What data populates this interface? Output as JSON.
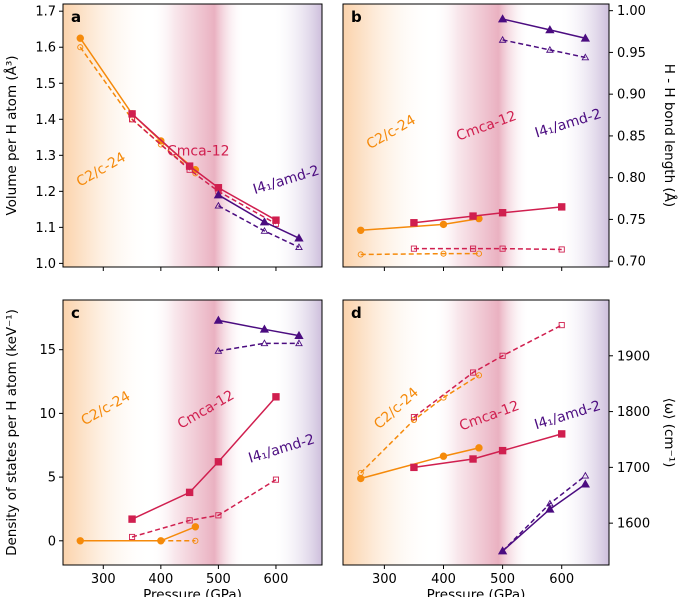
{
  "colors": {
    "c2c24": "#f58a0b",
    "cmca12": "#d01f4f",
    "i41amd2": "#4b0c80",
    "bg_orange": "#fbd3ac",
    "bg_pink": "#eab1c1",
    "bg_purple": "#cdbedc"
  },
  "chart_data": [
    {
      "panel": "a",
      "type": "line",
      "title": "",
      "xlabel": "",
      "ylabel": "Volume per H atom (Å³)",
      "yaxis_side": "left",
      "xlim": [
        230,
        680
      ],
      "ylim": [
        0.99,
        1.72
      ],
      "xticks": [
        300,
        400,
        500,
        600
      ],
      "show_xtick_labels": false,
      "yticks": [
        1.0,
        1.1,
        1.2,
        1.3,
        1.4,
        1.5,
        1.6,
        1.7
      ],
      "ytick_labels": [
        "1.0",
        "1.1",
        "1.2",
        "1.3",
        "1.4",
        "1.5",
        "1.6",
        "1.7"
      ],
      "annotations": [
        {
          "text": "C2/c-24",
          "x": 300,
          "y": 1.25,
          "rotation": -30,
          "color_key": "c2c24"
        },
        {
          "text": "Cmca-12",
          "x": 465,
          "y": 1.3,
          "rotation": 0,
          "color_key": "cmca12"
        },
        {
          "text": "I4₁/amd-2",
          "x": 620,
          "y": 1.22,
          "rotation": -17,
          "color_key": "i41amd2"
        }
      ],
      "series": [
        {
          "name": "C2/c-24 solid",
          "phase": "c2c24",
          "style": "solid",
          "marker": "circle",
          "filled": true,
          "x": [
            260,
            350,
            400,
            460
          ],
          "y": [
            1.625,
            1.415,
            1.34,
            1.26
          ]
        },
        {
          "name": "C2/c-24 dashed",
          "phase": "c2c24",
          "style": "dashed",
          "marker": "circle",
          "filled": false,
          "x": [
            260,
            350,
            400,
            460
          ],
          "y": [
            1.6,
            1.4,
            1.33,
            1.25
          ]
        },
        {
          "name": "Cmca-12 solid",
          "phase": "cmca12",
          "style": "solid",
          "marker": "square",
          "filled": true,
          "x": [
            350,
            450,
            500,
            600
          ],
          "y": [
            1.415,
            1.27,
            1.21,
            1.12
          ]
        },
        {
          "name": "Cmca-12 dashed",
          "phase": "cmca12",
          "style": "dashed",
          "marker": "square",
          "filled": false,
          "x": [
            350,
            450,
            500,
            600
          ],
          "y": [
            1.4,
            1.26,
            1.2,
            1.11
          ]
        },
        {
          "name": "I4₁/amd-2 solid",
          "phase": "i41amd2",
          "style": "solid",
          "marker": "triangle",
          "filled": true,
          "x": [
            500,
            580,
            640
          ],
          "y": [
            1.19,
            1.115,
            1.07
          ]
        },
        {
          "name": "I4₁/amd-2 dashed",
          "phase": "i41amd2",
          "style": "dashed",
          "marker": "triangle",
          "filled": false,
          "x": [
            500,
            580,
            640
          ],
          "y": [
            1.16,
            1.09,
            1.045
          ]
        }
      ]
    },
    {
      "panel": "b",
      "type": "line",
      "title": "",
      "xlabel": "",
      "ylabel": "H - H bond length (Å)",
      "yaxis_side": "right",
      "xlim": [
        230,
        680
      ],
      "ylim": [
        0.693,
        1.008
      ],
      "xticks": [
        300,
        400,
        500,
        600
      ],
      "show_xtick_labels": false,
      "yticks": [
        0.7,
        0.75,
        0.8,
        0.85,
        0.9,
        0.95,
        1.0
      ],
      "ytick_labels": [
        "0.70",
        "0.75",
        "0.80",
        "0.85",
        "0.90",
        "0.95",
        "1.00"
      ],
      "annotations": [
        {
          "text": "C2/c-24",
          "x": 315,
          "y": 0.85,
          "rotation": -30,
          "color_key": "c2c24"
        },
        {
          "text": "Cmca-12",
          "x": 475,
          "y": 0.857,
          "rotation": -20,
          "color_key": "cmca12"
        },
        {
          "text": "I4₁/amd-2",
          "x": 613,
          "y": 0.86,
          "rotation": -17,
          "color_key": "i41amd2"
        }
      ],
      "series": [
        {
          "name": "C2/c-24 solid",
          "phase": "c2c24",
          "style": "solid",
          "marker": "circle",
          "filled": true,
          "x": [
            260,
            400,
            460
          ],
          "y": [
            0.737,
            0.744,
            0.751
          ]
        },
        {
          "name": "C2/c-24 dashed",
          "phase": "c2c24",
          "style": "dashed",
          "marker": "circle",
          "filled": false,
          "x": [
            260,
            400,
            460
          ],
          "y": [
            0.708,
            0.709,
            0.709
          ]
        },
        {
          "name": "Cmca-12 solid",
          "phase": "cmca12",
          "style": "solid",
          "marker": "square",
          "filled": true,
          "x": [
            350,
            450,
            500,
            600
          ],
          "y": [
            0.746,
            0.754,
            0.758,
            0.765
          ]
        },
        {
          "name": "Cmca-12 dashed",
          "phase": "cmca12",
          "style": "dashed",
          "marker": "square",
          "filled": false,
          "x": [
            350,
            450,
            500,
            600
          ],
          "y": [
            0.715,
            0.715,
            0.715,
            0.714
          ]
        },
        {
          "name": "I4₁/amd-2 solid",
          "phase": "i41amd2",
          "style": "solid",
          "marker": "triangle",
          "filled": true,
          "x": [
            500,
            580,
            640
          ],
          "y": [
            0.99,
            0.977,
            0.967
          ]
        },
        {
          "name": "I4₁/amd-2 dashed",
          "phase": "i41amd2",
          "style": "dashed",
          "marker": "triangle",
          "filled": false,
          "x": [
            500,
            580,
            640
          ],
          "y": [
            0.965,
            0.953,
            0.944
          ]
        }
      ]
    },
    {
      "panel": "c",
      "type": "line",
      "title": "",
      "xlabel": "Pressure (GPa)",
      "ylabel": "Density of states per H atom (keV⁻¹)",
      "yaxis_side": "left",
      "xlim": [
        230,
        680
      ],
      "ylim": [
        -1.9,
        18.9
      ],
      "xticks": [
        300,
        400,
        500,
        600
      ],
      "xtick_labels": [
        "300",
        "400",
        "500",
        "600"
      ],
      "show_xtick_labels": true,
      "yticks": [
        0,
        5,
        10,
        15
      ],
      "ytick_labels": [
        "0",
        "5",
        "10",
        "15"
      ],
      "annotations": [
        {
          "text": "C2/c-24",
          "x": 308,
          "y": 10.1,
          "rotation": -30,
          "color_key": "c2c24"
        },
        {
          "text": "Cmca-12",
          "x": 482,
          "y": 10.0,
          "rotation": -30,
          "color_key": "cmca12"
        },
        {
          "text": "I4₁/amd-2",
          "x": 612,
          "y": 6.9,
          "rotation": -17,
          "color_key": "i41amd2"
        }
      ],
      "series": [
        {
          "name": "C2/c-24 solid",
          "phase": "c2c24",
          "style": "solid",
          "marker": "circle",
          "filled": true,
          "x": [
            260,
            400,
            460
          ],
          "y": [
            0.0,
            0.0,
            1.1
          ]
        },
        {
          "name": "C2/c-24 dashed",
          "phase": "c2c24",
          "style": "dashed",
          "marker": "circle",
          "filled": false,
          "x": [
            260,
            400,
            460
          ],
          "y": [
            0.0,
            0.0,
            0.0
          ]
        },
        {
          "name": "Cmca-12 solid",
          "phase": "cmca12",
          "style": "solid",
          "marker": "square",
          "filled": true,
          "x": [
            350,
            450,
            500,
            600
          ],
          "y": [
            1.7,
            3.8,
            6.2,
            11.3
          ]
        },
        {
          "name": "Cmca-12 dashed",
          "phase": "cmca12",
          "style": "dashed",
          "marker": "square",
          "filled": false,
          "x": [
            350,
            450,
            500,
            600
          ],
          "y": [
            0.3,
            1.6,
            2.0,
            4.8
          ]
        },
        {
          "name": "I4₁/amd-2 solid",
          "phase": "i41amd2",
          "style": "solid",
          "marker": "triangle",
          "filled": true,
          "x": [
            500,
            580,
            640
          ],
          "y": [
            17.3,
            16.6,
            16.1
          ]
        },
        {
          "name": "I4₁/amd-2 dashed",
          "phase": "i41amd2",
          "style": "dashed",
          "marker": "triangle",
          "filled": false,
          "x": [
            500,
            580,
            640
          ],
          "y": [
            14.9,
            15.5,
            15.5
          ]
        }
      ]
    },
    {
      "panel": "d",
      "type": "line",
      "title": "",
      "xlabel": "Pressure (GPa)",
      "ylabel": "⟨ω⟩ (cm⁻¹)",
      "yaxis_side": "right",
      "xlim": [
        230,
        680
      ],
      "ylim": [
        1525,
        2000
      ],
      "xticks": [
        300,
        400,
        500,
        600
      ],
      "xtick_labels": [
        "300",
        "400",
        "500",
        "600"
      ],
      "show_xtick_labels": true,
      "yticks": [
        1600,
        1700,
        1800,
        1900
      ],
      "ytick_labels": [
        "1600",
        "1700",
        "1800",
        "1900"
      ],
      "annotations": [
        {
          "text": "C2/c-24",
          "x": 325,
          "y": 1800,
          "rotation": -42,
          "color_key": "c2c24"
        },
        {
          "text": "Cmca-12",
          "x": 480,
          "y": 1785,
          "rotation": -20,
          "color_key": "cmca12"
        },
        {
          "text": "I4₁/amd-2",
          "x": 612,
          "y": 1786,
          "rotation": -17,
          "color_key": "i41amd2"
        }
      ],
      "series": [
        {
          "name": "C2/c-24 solid",
          "phase": "c2c24",
          "style": "solid",
          "marker": "circle",
          "filled": true,
          "x": [
            260,
            400,
            460
          ],
          "y": [
            1680,
            1720,
            1735
          ]
        },
        {
          "name": "C2/c-24 dashed",
          "phase": "c2c24",
          "style": "dashed",
          "marker": "circle",
          "filled": false,
          "x": [
            260,
            350,
            400,
            460
          ],
          "y": [
            1690,
            1785,
            1825,
            1865
          ]
        },
        {
          "name": "Cmca-12 solid",
          "phase": "cmca12",
          "style": "solid",
          "marker": "square",
          "filled": true,
          "x": [
            350,
            450,
            500,
            600
          ],
          "y": [
            1700,
            1715,
            1730,
            1760
          ]
        },
        {
          "name": "Cmca-12 dashed",
          "phase": "cmca12",
          "style": "dashed",
          "marker": "square",
          "filled": false,
          "x": [
            350,
            450,
            500,
            600
          ],
          "y": [
            1790,
            1870,
            1900,
            1955
          ]
        },
        {
          "name": "I4₁/amd-2 solid",
          "phase": "i41amd2",
          "style": "solid",
          "marker": "triangle",
          "filled": true,
          "x": [
            500,
            580,
            640
          ],
          "y": [
            1550,
            1625,
            1670
          ]
        },
        {
          "name": "I4₁/amd-2 dashed",
          "phase": "i41amd2",
          "style": "dashed",
          "marker": "triangle",
          "filled": false,
          "x": [
            500,
            580,
            640
          ],
          "y": [
            1550,
            1635,
            1685
          ]
        }
      ]
    }
  ]
}
